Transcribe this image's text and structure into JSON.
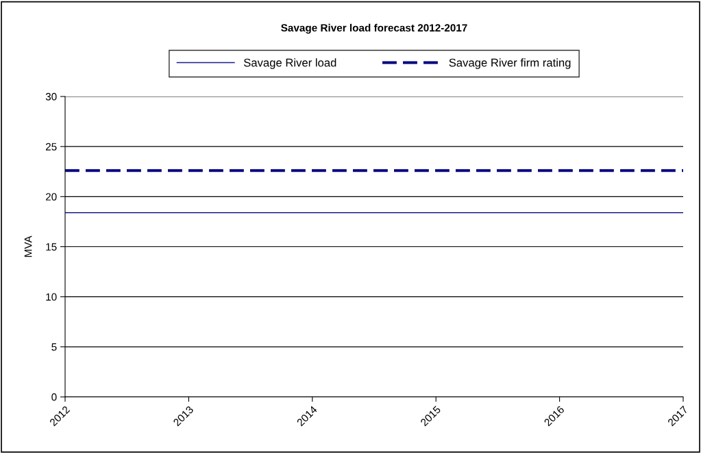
{
  "chart_data": {
    "type": "line",
    "title": "Savage River load forecast 2012-2017",
    "ylabel": "MVA",
    "categories": [
      "2012",
      "2013",
      "2014",
      "2015",
      "2016",
      "2017"
    ],
    "series": [
      {
        "name": "Savage River load",
        "color": "#1a1a8c",
        "values": [
          18.4,
          18.4,
          18.4,
          18.4,
          18.4,
          18.4
        ],
        "line_style": "solid"
      },
      {
        "name": "Savage River firm rating",
        "color": "#000080",
        "values": [
          22.6,
          22.6,
          22.6,
          22.6,
          22.6,
          22.6
        ],
        "line_style": "dashed"
      }
    ],
    "ylim": [
      0,
      30
    ],
    "yticks": [
      0,
      5,
      10,
      15,
      20,
      25,
      30
    ],
    "grid": "y",
    "legend": "top",
    "marker": "none"
  }
}
